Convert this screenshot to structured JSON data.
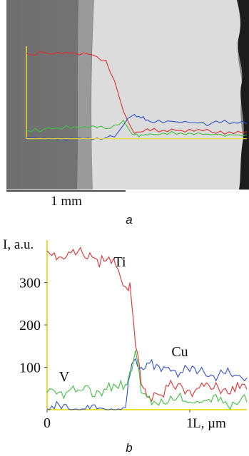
{
  "panel_a": {
    "caption": "a",
    "scale_bar_label": "1 mm"
  },
  "panel_b": {
    "caption": "b"
  },
  "chart_data": [
    {
      "type": "line",
      "panel": "a",
      "title": "",
      "xlabel": "",
      "ylabel": "",
      "x": [
        0,
        0.04,
        0.08,
        0.12,
        0.16,
        0.2,
        0.24,
        0.28,
        0.32,
        0.36,
        0.4,
        0.44,
        0.48,
        0.5,
        0.52,
        0.54,
        0.56,
        0.6,
        0.64,
        0.68,
        0.72,
        0.76,
        0.8,
        0.84,
        0.88,
        0.92,
        0.96,
        1.0
      ],
      "xlim": [
        0,
        1
      ],
      "ylim": [
        0,
        400
      ],
      "series": [
        {
          "color": "#e03030",
          "values": [
            370,
            360,
            372,
            365,
            368,
            370,
            362,
            366,
            355,
            340,
            250,
            120,
            40,
            30,
            30,
            40,
            35,
            30,
            32,
            36,
            30,
            33,
            35,
            30,
            34,
            31,
            33,
            32
          ]
        },
        {
          "color": "#3050d0",
          "values": [
            4,
            4,
            4,
            4,
            4,
            4,
            4,
            4,
            4,
            5,
            8,
            60,
            100,
            95,
            90,
            80,
            75,
            82,
            78,
            74,
            76,
            70,
            72,
            68,
            70,
            66,
            68,
            65
          ]
        },
        {
          "color": "#40c040",
          "values": [
            40,
            45,
            42,
            44,
            42,
            46,
            45,
            48,
            50,
            44,
            60,
            80,
            20,
            22,
            18,
            20,
            22,
            18,
            20,
            20,
            18,
            19,
            20,
            18,
            20,
            19,
            18,
            18
          ]
        },
        {
          "color": "#e8e030",
          "values": [
            1,
            1,
            1,
            1,
            1,
            1,
            1,
            1,
            1,
            1,
            1,
            1,
            1,
            1,
            1,
            1,
            1,
            1,
            1,
            1,
            1,
            1,
            1,
            1,
            1,
            1,
            1,
            1
          ]
        }
      ]
    },
    {
      "type": "line",
      "panel": "b",
      "title": "",
      "ylabel": "I, a.u.",
      "xlabel": "L, µm",
      "xlim": [
        0,
        1.4
      ],
      "ylim": [
        0,
        400
      ],
      "xticks": [
        0,
        1
      ],
      "yticks": [
        100,
        200,
        300
      ],
      "grid": false,
      "x": [
        0,
        0.05,
        0.1,
        0.15,
        0.2,
        0.25,
        0.3,
        0.35,
        0.4,
        0.45,
        0.5,
        0.55,
        0.58,
        0.62,
        0.66,
        0.7,
        0.75,
        0.8,
        0.85,
        0.9,
        0.95,
        1.0,
        1.05,
        1.1,
        1.15,
        1.2,
        1.25,
        1.3,
        1.35,
        1.4
      ],
      "series": [
        {
          "name": "Ti",
          "color": "#e03030",
          "values": [
            375,
            370,
            360,
            372,
            365,
            368,
            370,
            355,
            350,
            345,
            330,
            290,
            300,
            150,
            60,
            30,
            40,
            35,
            55,
            48,
            52,
            45,
            50,
            55,
            48,
            52,
            50,
            55,
            50,
            48
          ]
        },
        {
          "name": "Cu",
          "color": "#3050d0",
          "values": [
            2,
            2,
            2,
            2,
            2,
            2,
            2,
            2,
            2,
            2,
            2,
            5,
            80,
            120,
            100,
            110,
            95,
            90,
            100,
            92,
            88,
            90,
            85,
            88,
            82,
            80,
            85,
            78,
            80,
            75
          ]
        },
        {
          "name": "V",
          "color": "#40c040",
          "values": [
            40,
            45,
            42,
            44,
            42,
            46,
            50,
            45,
            48,
            44,
            50,
            60,
            90,
            140,
            40,
            30,
            20,
            25,
            18,
            22,
            20,
            18,
            20,
            22,
            18,
            20,
            19,
            18,
            20,
            18
          ]
        }
      ]
    }
  ]
}
